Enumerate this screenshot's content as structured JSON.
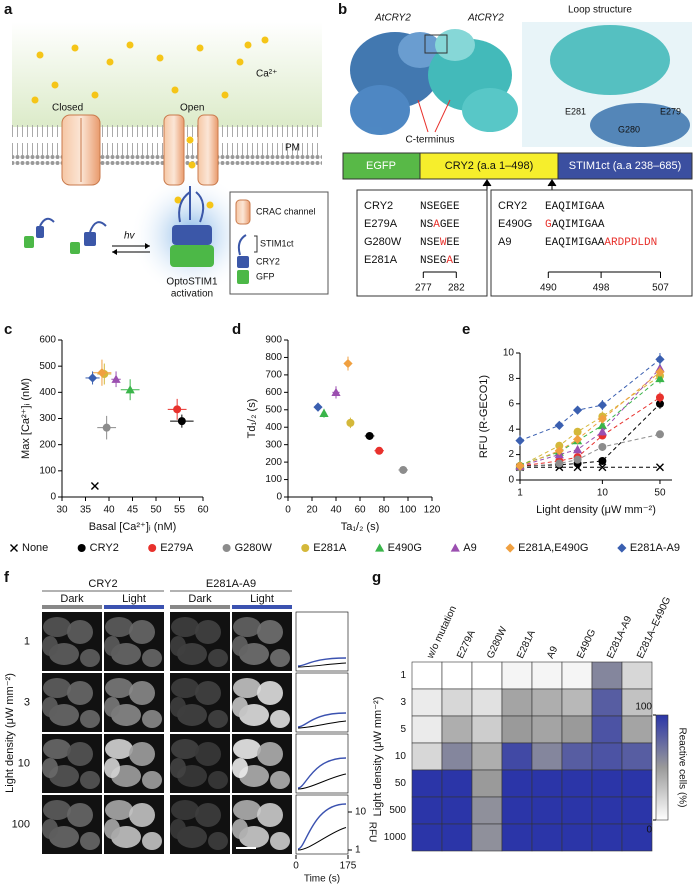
{
  "panel_labels": [
    "a",
    "b",
    "c",
    "d",
    "e",
    "f",
    "g"
  ],
  "panel_a": {
    "ion": "Ca²⁺",
    "closed": "Closed",
    "open": "Open",
    "membrane": "PM",
    "light": "hv",
    "activation": [
      "OptoSTIM1",
      "activation"
    ],
    "legend": [
      "CRAC channel",
      "STIM1ct",
      "CRY2",
      "GFP"
    ]
  },
  "panel_b": {
    "protein_left": "AtCRY2",
    "protein_right": "AtCRY2",
    "loop_title": "Loop structure",
    "c_terminus": "C-terminus",
    "residues": [
      "E281",
      "E279",
      "G280"
    ],
    "constructs": [
      "EGFP",
      "CRY2 (a.a 1–498)",
      "STIM1ct (a.a 238–685)"
    ],
    "mutation_color": "#e8312c",
    "alignment_left": {
      "rows": [
        {
          "name": "CRY2",
          "seq": [
            {
              "text": "NSEGEE"
            }
          ]
        },
        {
          "name": "E279A",
          "seq": [
            {
              "text": "NS"
            },
            {
              "text": "A",
              "mutation": true
            },
            {
              "text": "GEE"
            }
          ]
        },
        {
          "name": "G280W",
          "seq": [
            {
              "text": "NSE"
            },
            {
              "text": "W",
              "mutation": true
            },
            {
              "text": "EE"
            }
          ]
        },
        {
          "name": "E281A",
          "seq": [
            {
              "text": "NSEG"
            },
            {
              "text": "A",
              "mutation": true
            },
            {
              "text": "E"
            }
          ]
        }
      ],
      "positions": [
        277,
        282
      ]
    },
    "alignment_right": {
      "rows": [
        {
          "name": "CRY2",
          "seq": [
            {
              "text": "EAQIMIGAA"
            }
          ]
        },
        {
          "name": "E490G",
          "seq": [
            {
              "text": "G",
              "mutation": true
            },
            {
              "text": "AQIMIGAA"
            }
          ]
        },
        {
          "name": "A9",
          "seq": [
            {
              "text": "EAQIMIGAA"
            },
            {
              "text": "ARDPDLDN",
              "mutation": true
            }
          ]
        }
      ],
      "positions": [
        490,
        498,
        507
      ]
    }
  },
  "chart_data": [
    {
      "type": "scatter",
      "xlabel": "Basal [Ca²⁺]ᵢ (nM)",
      "ylabel": "Max [Ca²⁺]ᵢ (nM)",
      "xlim": [
        30,
        60
      ],
      "xticks": [
        30,
        35,
        40,
        45,
        50,
        55,
        60
      ],
      "ylim": [
        0,
        600
      ],
      "yticks": [
        0,
        100,
        200,
        300,
        400,
        500,
        600
      ],
      "series": [
        {
          "name": "None",
          "color": "#000000",
          "marker": "x",
          "x": [
            37
          ],
          "values": [
            42
          ]
        },
        {
          "name": "CRY2",
          "color": "#000000",
          "marker": "circle",
          "x": [
            55.5
          ],
          "values": [
            290
          ],
          "xerr": [
            2.5
          ],
          "yerr": [
            25
          ]
        },
        {
          "name": "E279A",
          "color": "#e8312c",
          "marker": "circle",
          "x": [
            54.5
          ],
          "values": [
            335
          ],
          "xerr": [
            2
          ],
          "yerr": [
            40
          ]
        },
        {
          "name": "G280W",
          "color": "#8c8c8c",
          "marker": "circle",
          "x": [
            39.5
          ],
          "values": [
            265
          ],
          "xerr": [
            2
          ],
          "yerr": [
            45
          ]
        },
        {
          "name": "E281A",
          "color": "#d4b83a",
          "marker": "circle",
          "x": [
            39
          ],
          "values": [
            470
          ],
          "xerr": [
            1.5
          ],
          "yerr": [
            40
          ]
        },
        {
          "name": "E490G",
          "color": "#3ab54a",
          "marker": "triangle",
          "x": [
            44.5
          ],
          "values": [
            410
          ],
          "xerr": [
            2
          ],
          "yerr": [
            40
          ]
        },
        {
          "name": "A9",
          "color": "#9b4fb0",
          "marker": "triangle",
          "x": [
            41.5
          ],
          "values": [
            450
          ],
          "xerr": [
            1
          ],
          "yerr": [
            30
          ]
        },
        {
          "name": "E281A,E490G",
          "color": "#f0a040",
          "marker": "diamond",
          "x": [
            38.5
          ],
          "values": [
            475
          ],
          "xerr": [
            2
          ],
          "yerr": [
            50
          ]
        },
        {
          "name": "E281A-A9",
          "color": "#3a5fb0",
          "marker": "diamond",
          "x": [
            36.5
          ],
          "values": [
            455
          ],
          "xerr": [
            1.5
          ],
          "yerr": [
            25
          ]
        }
      ]
    },
    {
      "type": "scatter",
      "xlabel": "Ta₁/₂ (s)",
      "ylabel": "Td₁/₂ (s)",
      "xlim": [
        0,
        120
      ],
      "xticks": [
        0,
        20,
        40,
        60,
        80,
        100,
        120
      ],
      "ylim": [
        0,
        900
      ],
      "yticks": [
        0,
        100,
        200,
        300,
        400,
        500,
        600,
        700,
        800,
        900
      ],
      "series": [
        {
          "color": "#000000",
          "marker": "circle",
          "x": [
            68
          ],
          "values": [
            350
          ],
          "xerr": [
            4
          ],
          "yerr": [
            20
          ]
        },
        {
          "color": "#e8312c",
          "marker": "circle",
          "x": [
            76
          ],
          "values": [
            265
          ],
          "xerr": [
            4
          ],
          "yerr": [
            20
          ]
        },
        {
          "color": "#8c8c8c",
          "marker": "circle",
          "x": [
            96
          ],
          "values": [
            155
          ],
          "xerr": [
            4
          ],
          "yerr": [
            15
          ]
        },
        {
          "color": "#d4b83a",
          "marker": "circle",
          "x": [
            52
          ],
          "values": [
            425
          ],
          "xerr": [
            3
          ],
          "yerr": [
            30
          ]
        },
        {
          "color": "#3ab54a",
          "marker": "triangle",
          "x": [
            30
          ],
          "values": [
            480
          ],
          "xerr": [
            2
          ],
          "yerr": [
            25
          ]
        },
        {
          "color": "#9b4fb0",
          "marker": "triangle",
          "x": [
            40
          ],
          "values": [
            600
          ],
          "xerr": [
            3
          ],
          "yerr": [
            35
          ]
        },
        {
          "color": "#f0a040",
          "marker": "diamond",
          "x": [
            50
          ],
          "values": [
            765
          ],
          "xerr": [
            3
          ],
          "yerr": [
            40
          ]
        },
        {
          "color": "#3a5fb0",
          "marker": "diamond",
          "x": [
            25
          ],
          "values": [
            515
          ],
          "xerr": [
            3
          ],
          "yerr": [
            25
          ]
        }
      ]
    },
    {
      "type": "line",
      "log_x": true,
      "xlabel": "Light density (μW mm⁻²)",
      "ylabel": "RFU (R-GECO1)",
      "x": [
        1,
        3,
        5,
        10,
        50
      ],
      "xlim": [
        1,
        70
      ],
      "xticks": [
        1,
        10,
        50
      ],
      "ylim": [
        0,
        10
      ],
      "yticks": [
        0,
        2,
        4,
        6,
        8,
        10
      ],
      "series": [
        {
          "color": "#000000",
          "marker": "x",
          "values": [
            1,
            1,
            1,
            1,
            1
          ]
        },
        {
          "color": "#000000",
          "marker": "circle",
          "values": [
            1.1,
            1.2,
            1.3,
            1.5,
            6.0
          ],
          "errors": [
            0.2,
            0.2,
            0.2,
            0.2,
            0.4
          ]
        },
        {
          "color": "#e8312c",
          "marker": "circle",
          "values": [
            1.1,
            1.5,
            1.8,
            3.5,
            6.5
          ],
          "errors": [
            0.2,
            0.2,
            0.2,
            0.3,
            0.4
          ]
        },
        {
          "color": "#8c8c8c",
          "marker": "circle",
          "values": [
            1.0,
            1.3,
            1.6,
            2.6,
            3.6
          ],
          "errors": [
            0.2,
            0.2,
            0.2,
            0.3,
            0.3
          ]
        },
        {
          "color": "#d4b83a",
          "marker": "circle",
          "values": [
            1.1,
            2.7,
            3.8,
            5.0,
            8.2
          ],
          "errors": [
            0.2,
            0.3,
            0.3,
            0.4,
            0.4
          ]
        },
        {
          "color": "#3ab54a",
          "marker": "triangle",
          "values": [
            1.2,
            2.2,
            3.1,
            4.3,
            8.0
          ],
          "errors": [
            0.2,
            0.2,
            0.3,
            0.3,
            0.4
          ]
        },
        {
          "color": "#9b4fb0",
          "marker": "triangle",
          "values": [
            1.1,
            2.0,
            2.4,
            3.8,
            8.8
          ],
          "errors": [
            0.2,
            0.2,
            0.3,
            0.3,
            0.4
          ]
        },
        {
          "color": "#f0a040",
          "marker": "diamond",
          "values": [
            1.1,
            2.3,
            3.2,
            4.8,
            8.5
          ],
          "errors": [
            0.2,
            0.2,
            0.3,
            0.3,
            0.4
          ]
        },
        {
          "color": "#3a5fb0",
          "marker": "diamond",
          "values": [
            3.1,
            4.3,
            5.5,
            5.9,
            9.5
          ],
          "errors": [
            0.4,
            0.3,
            0.3,
            0.4,
            0.5
          ]
        }
      ]
    },
    {
      "type": "heatmap",
      "ylabel": "Light density (μW mm⁻²)",
      "colorbar_label": "Reactive cells (%)",
      "columns": [
        "w/o mutation",
        "E279A",
        "G280W",
        "E281A",
        "A9",
        "E490G",
        "E281A-A9",
        "E281A–E490G"
      ],
      "rows": [
        1,
        3,
        5,
        10,
        50,
        500,
        1000
      ],
      "values": [
        [
          0,
          0,
          0,
          5,
          5,
          5,
          60,
          20
        ],
        [
          10,
          20,
          15,
          45,
          40,
          35,
          80,
          30
        ],
        [
          10,
          40,
          25,
          50,
          45,
          50,
          85,
          45
        ],
        [
          20,
          60,
          40,
          90,
          60,
          80,
          85,
          80
        ],
        [
          100,
          100,
          50,
          100,
          100,
          100,
          100,
          100
        ],
        [
          100,
          100,
          55,
          100,
          100,
          100,
          100,
          100
        ],
        [
          100,
          100,
          55,
          100,
          100,
          100,
          100,
          100
        ]
      ],
      "zlim": [
        0,
        100
      ],
      "zticks": [
        0,
        100
      ],
      "colormap": [
        "#ffffff",
        "#9a9a9a",
        "#2b35a8"
      ]
    }
  ],
  "panel_f": {
    "constructs": [
      "CRY2",
      "E281A-A9"
    ],
    "conditions": [
      "Dark",
      "Light",
      "Dark",
      "Light"
    ],
    "rows": [
      1,
      3,
      10,
      100
    ],
    "ylabel": "Light density (μW mm⁻²)",
    "trace_xticks": [
      0,
      175
    ],
    "trace_xlabel": "Time (s)",
    "trace_yticks": [
      10,
      1
    ],
    "trace_ylabel": "RFU"
  }
}
